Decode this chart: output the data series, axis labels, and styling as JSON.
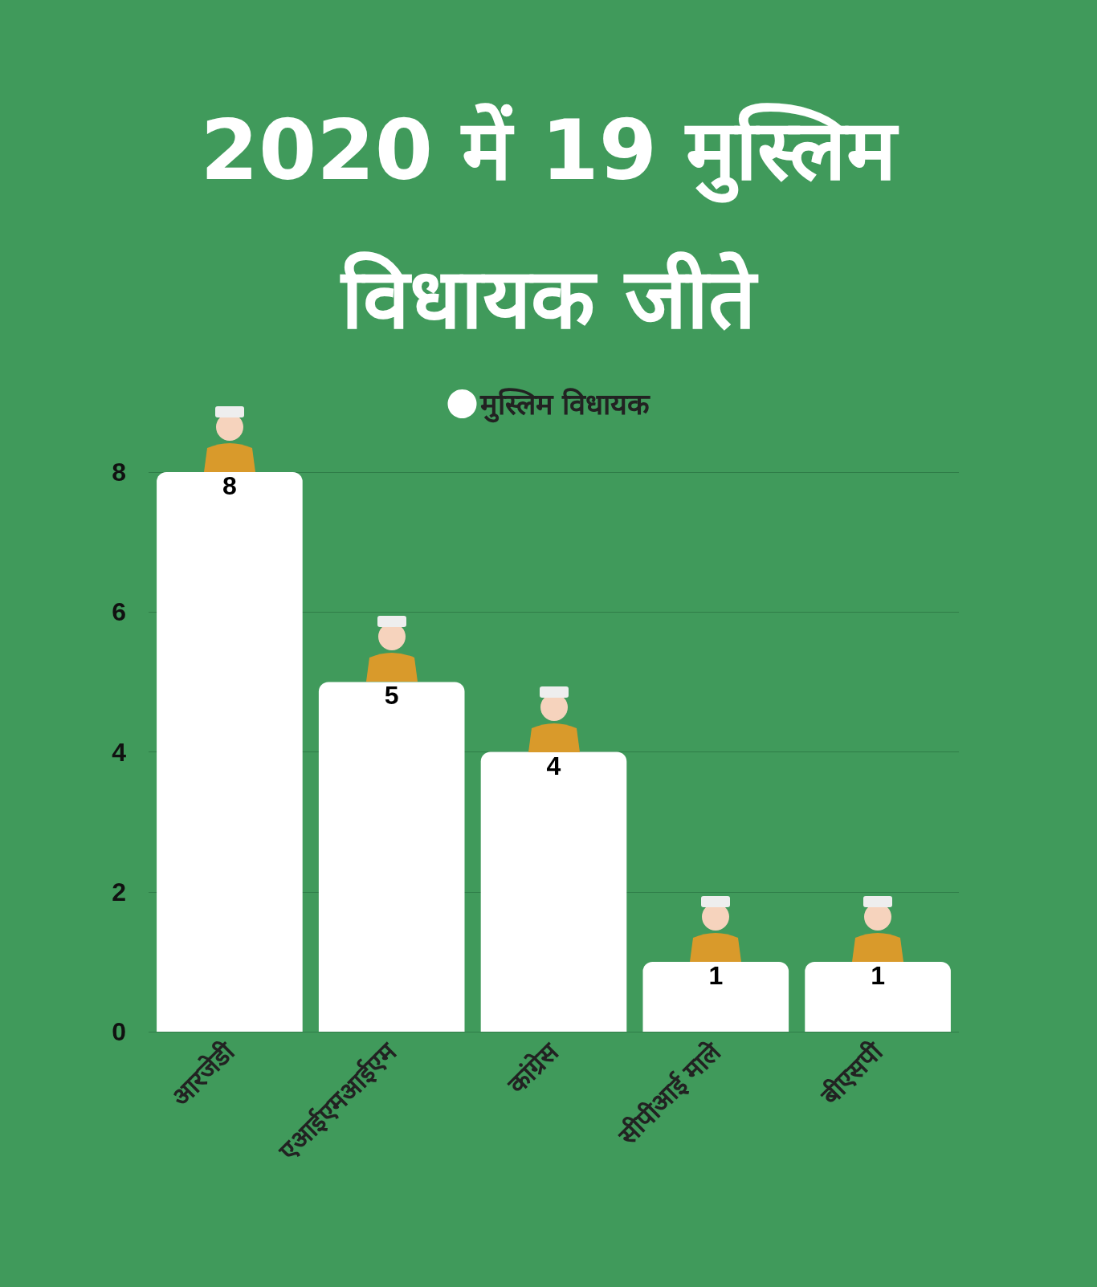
{
  "chart_data": {
    "type": "bar",
    "title": "2020 में 19 मुस्लिम विधायक जीते",
    "categories": [
      "आरजेडी",
      "एआईएमआईएम",
      "कांग्रेस",
      "सीपीआई माले",
      "बीएसपी"
    ],
    "series": [
      {
        "name": "मुस्लिम विधायक",
        "color": "#ffffff",
        "values": [
          8,
          5,
          4,
          1,
          1
        ]
      }
    ],
    "ylim": [
      0,
      8
    ],
    "yticks": [
      0,
      2,
      4,
      6,
      8
    ],
    "grid": "y",
    "legend": "top",
    "data_labels": true
  }
}
